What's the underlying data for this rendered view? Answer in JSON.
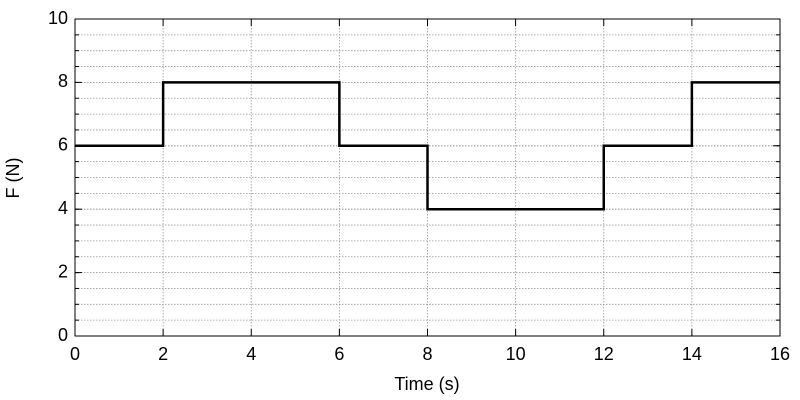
{
  "chart_data": {
    "type": "line",
    "x_label": "Time (s)",
    "y_label": "F (N)",
    "x": [
      0,
      2,
      2,
      6,
      6,
      8,
      8,
      12,
      12,
      14,
      14,
      16
    ],
    "series": [
      {
        "color": "#000000",
        "values": [
          6,
          6,
          8,
          8,
          6,
          6,
          4,
          4,
          6,
          6,
          8,
          8
        ]
      }
    ],
    "xlim": [
      0,
      16
    ],
    "xticks": [
      0,
      2,
      4,
      6,
      8,
      10,
      12,
      14,
      16
    ],
    "ylim": [
      0,
      10
    ],
    "yticks": [
      0,
      2,
      4,
      6,
      8,
      10
    ],
    "grid": true,
    "y_minor_step": 0.5
  }
}
